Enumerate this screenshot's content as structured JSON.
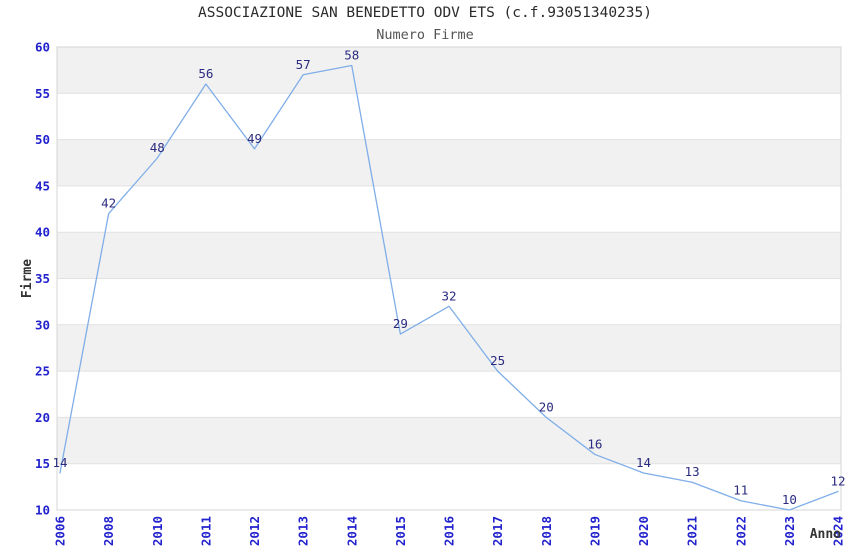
{
  "header": {
    "title": "ASSOCIAZIONE SAN BENEDETTO ODV ETS (c.f.93051340235)",
    "subtitle": "Numero Firme"
  },
  "chart_data": {
    "type": "line",
    "title": "ASSOCIAZIONE SAN BENEDETTO ODV ETS (c.f.93051340235)",
    "subtitle": "Numero Firme",
    "xlabel": "Anno",
    "ylabel": "Firme",
    "categories": [
      "2006",
      "2008",
      "2010",
      "2011",
      "2012",
      "2013",
      "2014",
      "2015",
      "2016",
      "2017",
      "2018",
      "2019",
      "2020",
      "2021",
      "2022",
      "2023",
      "2024"
    ],
    "series": [
      {
        "name": "Numero Firme",
        "values": [
          14,
          42,
          48,
          56,
          49,
          57,
          58,
          29,
          32,
          25,
          20,
          16,
          14,
          13,
          11,
          10,
          12
        ]
      }
    ],
    "ylim": [
      10,
      60
    ],
    "ytick_step": 5,
    "yticks": [
      10,
      15,
      20,
      25,
      30,
      35,
      40,
      45,
      50,
      55,
      60
    ],
    "grid": "horizontal-bands-alternating",
    "legend_position": "none",
    "data_labels": "above-points",
    "colors": {
      "line": "#7FAEE8",
      "point_label": "#2B2B80",
      "tick_label": "#2222CE",
      "axis_title": "#333333",
      "band": "#F1F1F1",
      "gridline": "#E1E1E1",
      "border": "#D5D5D5",
      "title": "#2B2B2B",
      "subtitle": "#555555",
      "background": "#FFFFFF"
    }
  }
}
